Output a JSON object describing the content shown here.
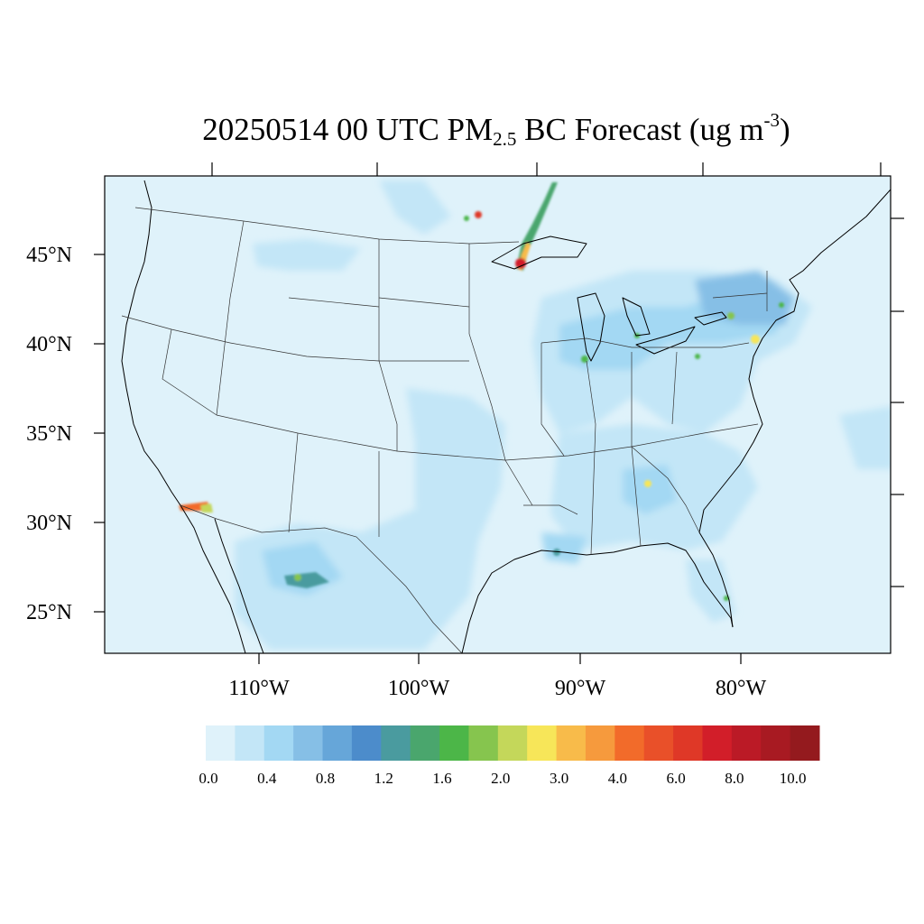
{
  "title": {
    "date": "20250514",
    "hour": "00 UTC",
    "species": "PM",
    "species_sub": "2.5",
    "product": "BC Forecast",
    "units_prefix": "(ug m",
    "units_sup": "-3",
    "units_suffix": ")"
  },
  "axes": {
    "lat_labels": [
      "45°N",
      "40°N",
      "35°N",
      "30°N",
      "25°N"
    ],
    "lon_labels": [
      "110°W",
      "100°W",
      "90°W",
      "80°W"
    ]
  },
  "colorbar": {
    "colors": [
      "#dff2fa",
      "#c3e6f7",
      "#a3d8f3",
      "#86bfe6",
      "#66a6d9",
      "#4c8ccb",
      "#4a9b9f",
      "#4aa66d",
      "#4cb648",
      "#86c54e",
      "#c4d75a",
      "#f7e659",
      "#f8bb4a",
      "#f69a3d",
      "#f26b2a",
      "#e95029",
      "#df3827",
      "#d21e29",
      "#bb1a26",
      "#a81a22",
      "#941a1e"
    ],
    "tick_labels": [
      "0.0",
      "0.4",
      "0.8",
      "1.2",
      "1.6",
      "2.0",
      "3.0",
      "4.0",
      "6.0",
      "8.0",
      "10.0"
    ]
  },
  "map": {
    "background_color": "#dff2fa",
    "line_color": "#000000",
    "hotspots": [
      {
        "name": "upper-michigan-plume",
        "level": 10.0
      },
      {
        "name": "southern-california",
        "level": 4.0
      },
      {
        "name": "northern-mexico",
        "level": 2.0
      },
      {
        "name": "new-york-city",
        "level": 3.0
      },
      {
        "name": "chicago",
        "level": 2.0
      }
    ]
  }
}
